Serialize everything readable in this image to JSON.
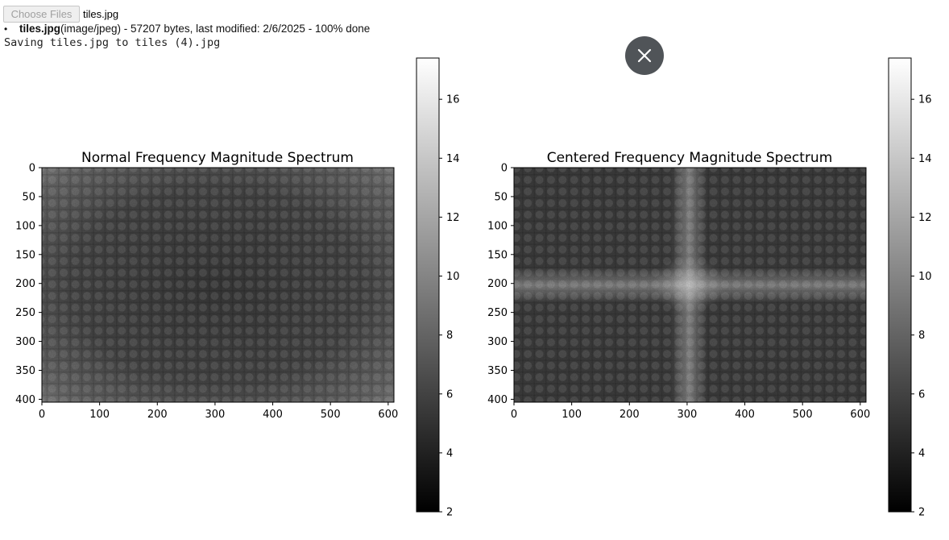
{
  "uploader": {
    "choose_files_label": "Choose Files",
    "selected_file": "tiles.jpg",
    "files": [
      {
        "name": "tiles.jpg",
        "details": "(image/jpeg) - 57207 bytes, last modified: 2/6/2025 - 100% done"
      }
    ]
  },
  "output": {
    "status": "Saving tiles.jpg to tiles (4).jpg"
  },
  "overlay": {
    "close_icon": "close-icon"
  },
  "chart_data": [
    {
      "type": "heatmap",
      "title": "Normal Frequency Magnitude Spectrum",
      "colormap": "gray",
      "xlim": [
        0,
        610
      ],
      "ylim": [
        405,
        0
      ],
      "xticks": [
        0,
        100,
        200,
        300,
        400,
        500,
        600
      ],
      "yticks": [
        0,
        50,
        100,
        150,
        200,
        250,
        300,
        350,
        400
      ],
      "colorbar": {
        "range": [
          2,
          17.4
        ],
        "ticks": [
          2,
          4,
          6,
          8,
          10,
          12,
          14,
          16
        ]
      },
      "pattern": "bright low-frequency energy at image corners and edges, darker center, periodic tile grid"
    },
    {
      "type": "heatmap",
      "title": "Centered Frequency Magnitude Spectrum",
      "colormap": "gray",
      "xlim": [
        0,
        610
      ],
      "ylim": [
        405,
        0
      ],
      "xticks": [
        0,
        100,
        200,
        300,
        400,
        500,
        600
      ],
      "yticks": [
        0,
        50,
        100,
        150,
        200,
        250,
        300,
        350,
        400
      ],
      "colorbar": {
        "range": [
          2,
          17.4
        ],
        "ticks": [
          2,
          4,
          6,
          8,
          10,
          12,
          14,
          16
        ]
      },
      "pattern": "bright cross through center at x≈305, y≈200, periodic tile grid"
    }
  ]
}
